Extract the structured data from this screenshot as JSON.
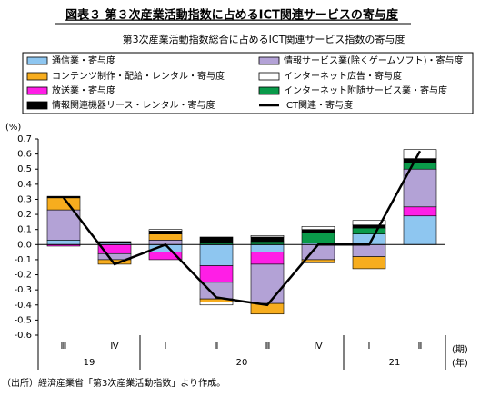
{
  "chart_data": {
    "type": "stacked_bar_line",
    "title": "図表３ 第３次産業活動指数に占めるICT関連サービスの寄与度",
    "subtitle": "第3次産業活動指数総合に占めるICT関連サービス指数の寄与度",
    "y_axis_label": "(%)",
    "x_axis_label": "(期)",
    "year_axis_label": "(年)",
    "source": "（出所）経済産業省「第3次産業活動指数」より作成。",
    "categories": [
      "Ⅲ",
      "Ⅳ",
      "Ⅰ",
      "Ⅱ",
      "Ⅲ",
      "Ⅳ",
      "Ⅰ",
      "Ⅱ"
    ],
    "years": [
      {
        "name": "19",
        "span": [
          0,
          1
        ]
      },
      {
        "name": "20",
        "span": [
          2,
          5
        ]
      },
      {
        "name": "21",
        "span": [
          6,
          7
        ]
      }
    ],
    "ylim": [
      -0.6,
      0.7
    ],
    "yticks": [
      0.7,
      0.6,
      0.5,
      0.4,
      0.3,
      0.2,
      0.1,
      {
        "value": 0,
        "label": "0.0"
      },
      -0.1,
      -0.2,
      -0.3,
      -0.4,
      -0.5,
      -0.6
    ],
    "series": [
      {
        "name": "通信業・寄与度",
        "color": "#8ec6f0",
        "type": "bar",
        "values": [
          0.03,
          0.01,
          -0.05,
          -0.14,
          -0.05,
          0.01,
          0.07,
          0.19
        ]
      },
      {
        "name": "放送業・寄与度",
        "color": "#ff1ee6",
        "type": "bar",
        "values": [
          -0.01,
          -0.06,
          -0.05,
          -0.11,
          -0.08,
          0,
          0,
          0.06
        ]
      },
      {
        "name": "情報サービス業(除くゲームソフト)・寄与度",
        "color": "#b3a2d6",
        "type": "bar",
        "values": [
          0.2,
          -0.04,
          0.03,
          -0.11,
          -0.26,
          -0.1,
          -0.08,
          0.25
        ]
      },
      {
        "name": "インターネット附随サービス業・寄与度",
        "color": "#0a9a4a",
        "type": "bar",
        "values": [
          0,
          0,
          0,
          0.01,
          0.02,
          0.07,
          0.04,
          0.04
        ]
      },
      {
        "name": "コンテンツ制作・配給・レンタル・寄与度",
        "color": "#f7ad1e",
        "type": "bar",
        "values": [
          0.08,
          -0.03,
          0.04,
          -0.02,
          -0.07,
          -0.02,
          -0.08,
          0
        ]
      },
      {
        "name": "情報関連機器リース・レンタル・寄与度",
        "color": "#000000",
        "type": "bar",
        "values": [
          0.01,
          0.01,
          0.02,
          0.04,
          0.03,
          0.02,
          0.02,
          0.03
        ]
      },
      {
        "name": "インターネット広告・寄与度",
        "color": "#ffffff",
        "type": "bar",
        "values": [
          0,
          0,
          0.01,
          -0.02,
          0.01,
          0.02,
          0.03,
          0.06
        ]
      },
      {
        "name": "ICT関連・寄与度",
        "color": "#000000",
        "type": "line",
        "values": [
          0.31,
          -0.13,
          0,
          -0.35,
          -0.4,
          0,
          0,
          0.62
        ]
      }
    ]
  }
}
